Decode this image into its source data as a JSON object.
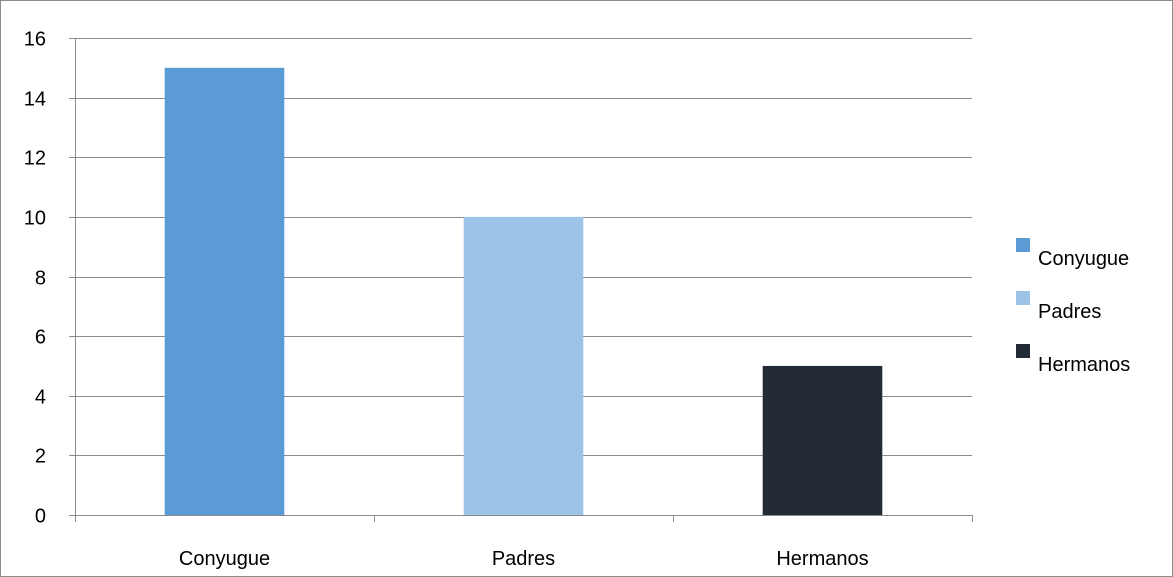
{
  "chart_data": {
    "type": "bar",
    "categories": [
      "Conyugue",
      "Padres",
      "Hermanos"
    ],
    "values": [
      15,
      10,
      5
    ],
    "colors": [
      "#5b9bd5",
      "#9dc3e6",
      "#222a35"
    ],
    "title": "",
    "xlabel": "",
    "ylabel": "",
    "ylim": [
      0,
      16
    ],
    "yticks": [
      0,
      2,
      4,
      6,
      8,
      10,
      12,
      14,
      16
    ],
    "grid": true,
    "legend": {
      "position": "right",
      "entries": [
        "Conyugue",
        "Padres",
        "Hermanos"
      ]
    }
  }
}
